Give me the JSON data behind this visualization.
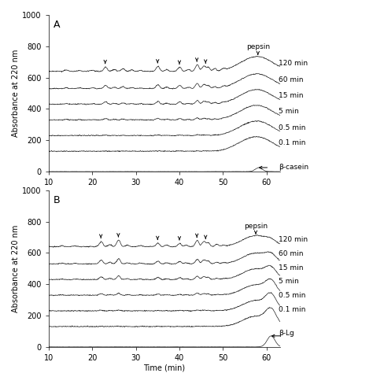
{
  "panel_A_label": "A",
  "panel_B_label": "B",
  "xlabel": "Time (min)",
  "ylabel": "Absorbance at 220 nm",
  "xlim": [
    10,
    63
  ],
  "ylim_A": [
    0,
    1000
  ],
  "ylim_B": [
    0,
    1000
  ],
  "yticks": [
    0,
    200,
    400,
    600,
    800,
    1000
  ],
  "xticks": [
    10,
    20,
    30,
    40,
    50,
    60
  ],
  "time_labels_A": [
    "120 min",
    "60 min",
    "15 min",
    "5 min",
    "0.5 min",
    "0.1 min",
    "β-casein"
  ],
  "time_labels_B": [
    "120 min",
    "60 min",
    "15 min",
    "5 min",
    "0.5 min",
    "0.1 min",
    "β-Lg"
  ],
  "offsets_A": [
    640,
    530,
    430,
    330,
    230,
    130,
    0
  ],
  "offsets_B": [
    640,
    530,
    430,
    330,
    230,
    130,
    0
  ],
  "pepsin_label": "pepsin",
  "pepsin_x_A": 58.0,
  "pepsin_x_B": 57.5,
  "arrows_A_x": [
    23,
    35,
    40,
    44,
    46
  ],
  "arrows_B_x": [
    22,
    26,
    35,
    40,
    44,
    46
  ],
  "background_color": "#ffffff",
  "line_color": "#222222",
  "fontsize_ylabel": 7,
  "fontsize_xlabel": 7,
  "fontsize_ticks": 7,
  "fontsize_panel": 9,
  "fontsize_timelabel": 6.5,
  "fontsize_pepsin": 6.5,
  "lw": 0.5
}
